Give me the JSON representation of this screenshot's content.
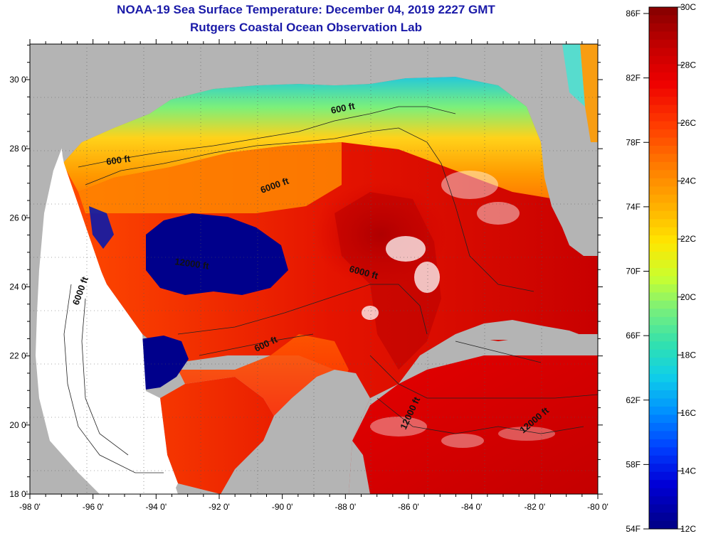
{
  "header": {
    "title": "NOAA-19 Sea Surface Temperature:  December 04, 2019 2227 GMT",
    "subtitle": "Rutgers Coastal Ocean Observation Lab"
  },
  "axes": {
    "x_ticks": [
      "-98 0'",
      "-96 0'",
      "-94 0'",
      "-92 0'",
      "-90 0'",
      "-88 0'",
      "-86 0'",
      "-84 0'",
      "-82 0'",
      "-80 0'"
    ],
    "y_ticks": [
      "30 0'",
      "28 0'",
      "26 0'",
      "24 0'",
      "22 0'",
      "20 0'",
      "18 0'"
    ]
  },
  "contour_labels": [
    "600 ft",
    "600 ft",
    "6000 ft",
    "12000 ft",
    "6000 ft",
    "6000 ft",
    "600 ft",
    "12000 ft",
    "12000 ft"
  ],
  "colorbar": {
    "fahrenheit": [
      "86F",
      "82F",
      "78F",
      "74F",
      "70F",
      "66F",
      "62F",
      "58F",
      "54F"
    ],
    "celsius": [
      "30C",
      "28C",
      "26C",
      "24C",
      "22C",
      "20C",
      "18C",
      "16C",
      "14C",
      "12C"
    ]
  },
  "colors": {
    "title": "#1a1aa8",
    "land": "#b4b4b4",
    "no_data": "#ffffff",
    "cold": "#00008b",
    "warm": "#8b0000"
  }
}
